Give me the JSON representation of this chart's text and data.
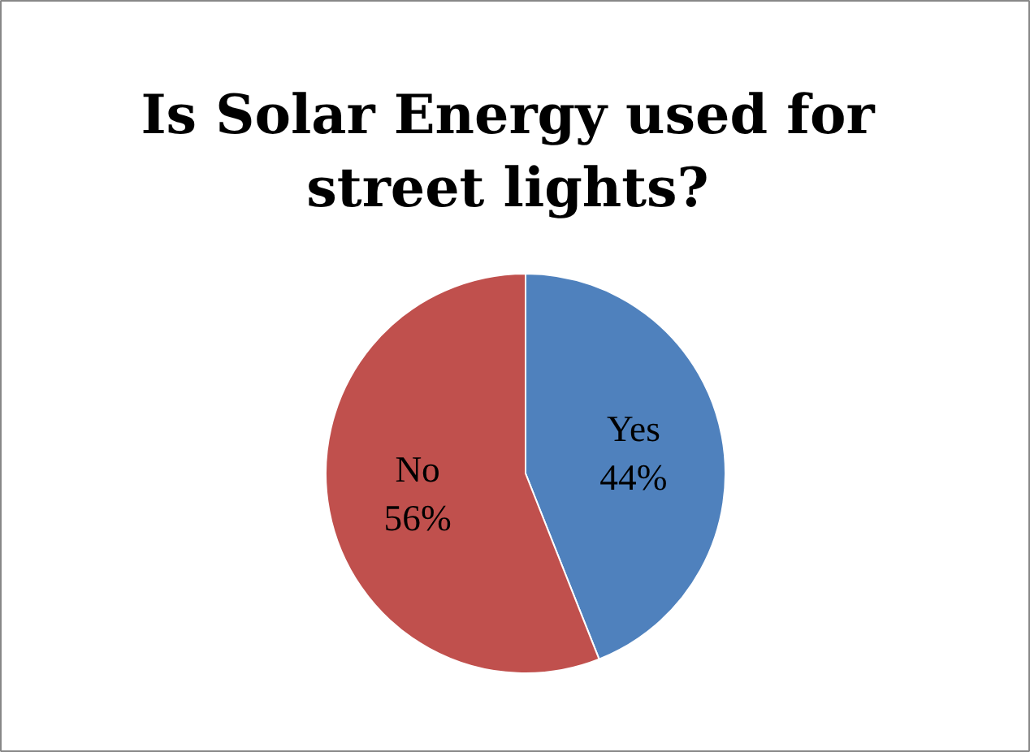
{
  "chart_data": {
    "type": "pie",
    "title": "Is Solar Energy used for street lights?",
    "categories": [
      "Yes",
      "No"
    ],
    "values": [
      44,
      56
    ],
    "colors": [
      "#4f81bd",
      "#c0504d"
    ],
    "value_labels": [
      "44%",
      "56%"
    ]
  }
}
